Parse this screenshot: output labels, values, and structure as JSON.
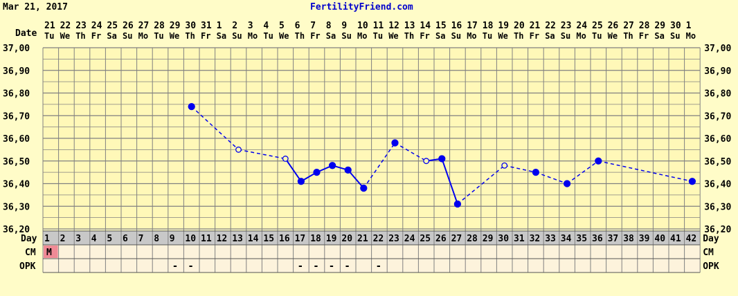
{
  "header": {
    "date": "Mar 21, 2017",
    "site": "FertilityFriend.com"
  },
  "labels": {
    "date": "Date",
    "day": "Day",
    "cm": "CM",
    "opk": "OPK"
  },
  "colors": {
    "line": "#0000ee",
    "cm_highlight": "#f08a96",
    "grid": "#808080",
    "background": "#fffcc8",
    "temp_band": "#fff8b8",
    "lower_rows": "#fdf3dc"
  },
  "chart_data": {
    "type": "line",
    "ylim": [
      36.2,
      37.0
    ],
    "y_ticks": [
      "37,00",
      "36,90",
      "36,80",
      "36,70",
      "36,60",
      "36,50",
      "36,40",
      "36,30",
      "36,20"
    ],
    "dates": [
      "21",
      "22",
      "23",
      "24",
      "25",
      "26",
      "27",
      "28",
      "29",
      "30",
      "31",
      "1",
      "2",
      "3",
      "4",
      "5",
      "6",
      "7",
      "8",
      "9",
      "10",
      "11",
      "12",
      "13",
      "14",
      "15",
      "16",
      "17",
      "18",
      "19",
      "20",
      "21",
      "22",
      "23",
      "24",
      "25",
      "26",
      "27",
      "28",
      "29",
      "30",
      "1"
    ],
    "weekdays": [
      "Tu",
      "We",
      "Th",
      "Fr",
      "Sa",
      "Su",
      "Mo",
      "Tu",
      "We",
      "Th",
      "Fr",
      "Sa",
      "Su",
      "Mo",
      "Tu",
      "We",
      "Th",
      "Fr",
      "Sa",
      "Su",
      "Mo",
      "Tu",
      "We",
      "Th",
      "Fr",
      "Sa",
      "Su",
      "Mo",
      "Tu",
      "We",
      "Th",
      "Fr",
      "Sa",
      "Su",
      "Mo",
      "Tu",
      "We",
      "Th",
      "Fr",
      "Sa",
      "Su",
      "Mo"
    ],
    "days": [
      "1",
      "2",
      "3",
      "4",
      "5",
      "6",
      "7",
      "8",
      "9",
      "10",
      "11",
      "12",
      "13",
      "14",
      "15",
      "16",
      "17",
      "18",
      "19",
      "20",
      "21",
      "22",
      "23",
      "24",
      "25",
      "26",
      "27",
      "28",
      "29",
      "30",
      "31",
      "32",
      "33",
      "34",
      "35",
      "36",
      "37",
      "38",
      "39",
      "40",
      "41",
      "42"
    ],
    "temps": [
      {
        "day": 10,
        "temp": 36.74,
        "open": false
      },
      {
        "day": 13,
        "temp": 36.55,
        "open": true
      },
      {
        "day": 16,
        "temp": 36.51,
        "open": true
      },
      {
        "day": 17,
        "temp": 36.41,
        "open": false
      },
      {
        "day": 18,
        "temp": 36.45,
        "open": false
      },
      {
        "day": 19,
        "temp": 36.48,
        "open": false
      },
      {
        "day": 20,
        "temp": 36.46,
        "open": false
      },
      {
        "day": 21,
        "temp": 36.38,
        "open": false
      },
      {
        "day": 23,
        "temp": 36.58,
        "open": false
      },
      {
        "day": 25,
        "temp": 36.5,
        "open": true
      },
      {
        "day": 26,
        "temp": 36.51,
        "open": false
      },
      {
        "day": 27,
        "temp": 36.31,
        "open": false
      },
      {
        "day": 30,
        "temp": 36.48,
        "open": true
      },
      {
        "day": 32,
        "temp": 36.45,
        "open": false
      },
      {
        "day": 34,
        "temp": 36.4,
        "open": false
      },
      {
        "day": 36,
        "temp": 36.5,
        "open": false
      },
      {
        "day": 42,
        "temp": 36.41,
        "open": false
      }
    ],
    "segments": [
      {
        "from": 10,
        "to": 13,
        "style": "dashed"
      },
      {
        "from": 13,
        "to": 16,
        "style": "dashed"
      },
      {
        "from": 16,
        "to": 17,
        "style": "solid"
      },
      {
        "from": 17,
        "to": 18,
        "style": "solid"
      },
      {
        "from": 18,
        "to": 19,
        "style": "solid"
      },
      {
        "from": 19,
        "to": 20,
        "style": "solid"
      },
      {
        "from": 20,
        "to": 21,
        "style": "solid"
      },
      {
        "from": 21,
        "to": 23,
        "style": "dashed"
      },
      {
        "from": 23,
        "to": 25,
        "style": "dashed"
      },
      {
        "from": 25,
        "to": 26,
        "style": "solid"
      },
      {
        "from": 26,
        "to": 27,
        "style": "solid"
      },
      {
        "from": 27,
        "to": 30,
        "style": "dashed"
      },
      {
        "from": 30,
        "to": 32,
        "style": "dashed"
      },
      {
        "from": 32,
        "to": 34,
        "style": "dashed"
      },
      {
        "from": 34,
        "to": 36,
        "style": "dashed"
      },
      {
        "from": 36,
        "to": 42,
        "style": "dashed"
      }
    ],
    "cm": [
      {
        "day": 1,
        "value": "M"
      }
    ],
    "opk": [
      {
        "day": 9,
        "value": "-"
      },
      {
        "day": 10,
        "value": "-"
      },
      {
        "day": 17,
        "value": "-"
      },
      {
        "day": 18,
        "value": "-"
      },
      {
        "day": 19,
        "value": "-"
      },
      {
        "day": 20,
        "value": "-"
      },
      {
        "day": 22,
        "value": "-"
      }
    ]
  }
}
